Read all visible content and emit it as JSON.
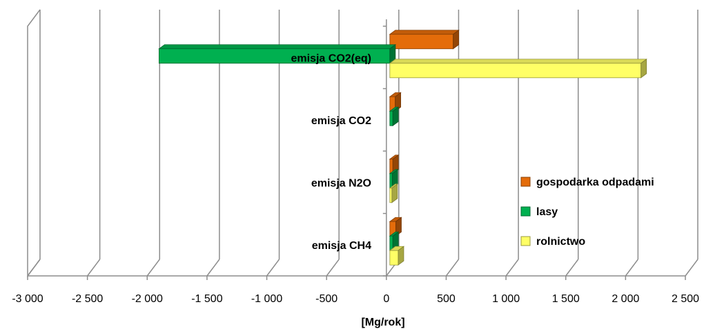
{
  "chart_data": {
    "type": "bar",
    "orientation": "horizontal",
    "style": "3d-clustered",
    "categories": [
      "emisja CH4",
      "emisja N2O",
      "emisja CO2",
      "emisja CO2(eq)"
    ],
    "series": [
      {
        "name": "gospodarka odpadami",
        "color": "#E46C0A",
        "values": [
          50,
          25,
          45,
          530
        ]
      },
      {
        "name": "lasy",
        "color": "#00B050",
        "values": [
          25,
          20,
          25,
          -1930
        ]
      },
      {
        "name": "rolnictwo",
        "color": "#FFFF66",
        "values": [
          70,
          10,
          0,
          2100
        ]
      }
    ],
    "xlim": [
      -3000,
      2500
    ],
    "xticks": [
      -3000,
      -2500,
      -2000,
      -1500,
      -1000,
      -500,
      0,
      500,
      1000,
      1500,
      2000,
      2500
    ],
    "xtick_labels": [
      "-3 000",
      "-2 500",
      "-2 000",
      "-1 500",
      "-1 000",
      "-500",
      "0",
      "500",
      "1 000",
      "1 500",
      "2 000",
      "2 500"
    ],
    "xlabel": "[Mg/rok]",
    "grid": "vertical",
    "legend_position": "right"
  }
}
